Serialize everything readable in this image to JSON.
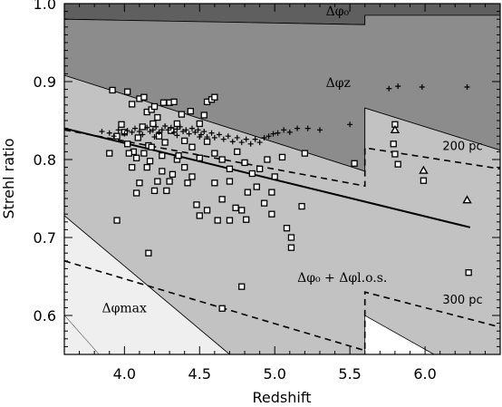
{
  "chart_data": {
    "type": "scatter",
    "xlabel": "Redshift",
    "ylabel": "Strehl ratio",
    "xlim": [
      3.6,
      6.5
    ],
    "ylim": [
      0.55,
      1.0
    ],
    "x_ticks": [
      4.0,
      4.5,
      5.0,
      5.5,
      6.0
    ],
    "x_tick_labels": [
      "4.0",
      "4.5",
      "5.0",
      "5.5",
      "6.0"
    ],
    "y_ticks": [
      0.6,
      0.7,
      0.8,
      0.9,
      1.0
    ],
    "y_tick_labels": [
      "0.6",
      "0.7",
      "0.8",
      "0.9",
      "1.0"
    ],
    "region_labels": [
      {
        "text": "Δφ₀",
        "x": 5.34,
        "y": 0.985
      },
      {
        "text": "Δφz",
        "x": 5.34,
        "y": 0.893
      },
      {
        "text": "Δφ₀ + Δφl.o.s.",
        "x": 5.15,
        "y": 0.643
      },
      {
        "text": "Δφmax",
        "x": 3.85,
        "y": 0.604
      }
    ],
    "contour_labels": [
      {
        "text": "200 pc",
        "x": 6.25,
        "y": 0.812
      },
      {
        "text": "300 pc",
        "x": 6.25,
        "y": 0.615
      }
    ],
    "colors": {
      "band_darkest": "#5f5f5f",
      "band_dark": "#8c8c8c",
      "band_mid": "#c2c2c2",
      "band_light": "#efefef"
    },
    "bands": [
      {
        "name": "delta-phi-0",
        "color": "#5f5f5f",
        "upper": [
          [
            3.6,
            1.0
          ],
          [
            6.5,
            1.0
          ]
        ],
        "lower": [
          [
            3.6,
            0.98
          ],
          [
            5.6,
            0.973
          ],
          [
            5.6,
            0.985
          ],
          [
            6.5,
            0.985
          ]
        ]
      },
      {
        "name": "delta-phi-z",
        "color": "#8c8c8c",
        "upper": [
          [
            3.6,
            0.98
          ],
          [
            5.6,
            0.973
          ],
          [
            5.6,
            0.985
          ],
          [
            6.5,
            0.985
          ]
        ],
        "lower": [
          [
            3.6,
            0.908
          ],
          [
            5.6,
            0.785
          ],
          [
            5.6,
            0.866
          ],
          [
            6.5,
            0.812
          ]
        ]
      },
      {
        "name": "delta-phi-los",
        "color": "#c2c2c2",
        "upper": [
          [
            3.6,
            0.908
          ],
          [
            5.6,
            0.785
          ],
          [
            5.6,
            0.866
          ],
          [
            6.5,
            0.812
          ]
        ],
        "lower": [
          [
            3.6,
            0.728
          ],
          [
            4.7,
            0.55
          ],
          [
            5.6,
            0.55
          ],
          [
            5.6,
            0.6
          ],
          [
            6.06,
            0.55
          ],
          [
            6.5,
            0.55
          ]
        ]
      },
      {
        "name": "delta-phi-max",
        "color": "#efefef",
        "upper": [
          [
            3.6,
            0.728
          ],
          [
            4.7,
            0.55
          ]
        ],
        "lower": [
          [
            3.6,
            0.6
          ],
          [
            3.83,
            0.55
          ]
        ]
      }
    ],
    "solid_line": [
      [
        3.6,
        0.84
      ],
      [
        6.3,
        0.713
      ]
    ],
    "dashed_200pc": [
      [
        3.6,
        0.838
      ],
      [
        5.6,
        0.766
      ],
      [
        5.6,
        0.815
      ],
      [
        6.5,
        0.788
      ]
    ],
    "dashed_300pc": [
      [
        3.6,
        0.67
      ],
      [
        5.6,
        0.555
      ],
      [
        5.6,
        0.63
      ],
      [
        6.5,
        0.585
      ]
    ],
    "series": [
      {
        "marker": "square",
        "points": [
          [
            3.92,
            0.889
          ],
          [
            3.98,
            0.845
          ],
          [
            4.02,
            0.887
          ],
          [
            4.05,
            0.871
          ],
          [
            4.1,
            0.878
          ],
          [
            4.13,
            0.88
          ],
          [
            4.15,
            0.861
          ],
          [
            4.18,
            0.864
          ],
          [
            4.2,
            0.868
          ],
          [
            4.22,
            0.854
          ],
          [
            4.26,
            0.873
          ],
          [
            4.3,
            0.873
          ],
          [
            4.33,
            0.874
          ],
          [
            4.38,
            0.858
          ],
          [
            4.44,
            0.862
          ],
          [
            4.5,
            0.846
          ],
          [
            4.55,
            0.874
          ],
          [
            4.58,
            0.877
          ],
          [
            4.6,
            0.88
          ],
          [
            4.53,
            0.857
          ],
          [
            3.9,
            0.808
          ],
          [
            3.95,
            0.83
          ],
          [
            4.0,
            0.835
          ],
          [
            4.02,
            0.82
          ],
          [
            4.06,
            0.81
          ],
          [
            4.09,
            0.828
          ],
          [
            4.12,
            0.842
          ],
          [
            4.16,
            0.818
          ],
          [
            4.19,
            0.846
          ],
          [
            4.23,
            0.83
          ],
          [
            4.27,
            0.822
          ],
          [
            4.31,
            0.837
          ],
          [
            4.35,
            0.846
          ],
          [
            4.4,
            0.824
          ],
          [
            4.45,
            0.816
          ],
          [
            4.5,
            0.802
          ],
          [
            4.55,
            0.823
          ],
          [
            4.6,
            0.808
          ],
          [
            4.65,
            0.8
          ],
          [
            4.7,
            0.788
          ],
          [
            4.75,
            0.81
          ],
          [
            4.8,
            0.796
          ],
          [
            4.85,
            0.782
          ],
          [
            4.9,
            0.788
          ],
          [
            4.95,
            0.8
          ],
          [
            5.0,
            0.778
          ],
          [
            5.05,
            0.803
          ],
          [
            4.98,
            0.758
          ],
          [
            4.93,
            0.744
          ],
          [
            4.88,
            0.765
          ],
          [
            4.82,
            0.758
          ],
          [
            4.78,
            0.735
          ],
          [
            4.74,
            0.738
          ],
          [
            4.7,
            0.772
          ],
          [
            4.65,
            0.749
          ],
          [
            4.6,
            0.77
          ],
          [
            4.55,
            0.735
          ],
          [
            4.5,
            0.728
          ],
          [
            4.45,
            0.778
          ],
          [
            4.4,
            0.79
          ],
          [
            4.35,
            0.8
          ],
          [
            4.3,
            0.772
          ],
          [
            4.25,
            0.785
          ],
          [
            4.2,
            0.76
          ],
          [
            4.15,
            0.79
          ],
          [
            4.1,
            0.77
          ],
          [
            4.05,
            0.79
          ],
          [
            4.03,
            0.808
          ],
          [
            4.08,
            0.802
          ],
          [
            4.17,
            0.798
          ],
          [
            4.22,
            0.772
          ],
          [
            4.28,
            0.76
          ],
          [
            4.32,
            0.781
          ],
          [
            4.36,
            0.805
          ],
          [
            4.42,
            0.77
          ],
          [
            4.48,
            0.742
          ],
          [
            4.08,
            0.757
          ],
          [
            4.13,
            0.808
          ],
          [
            4.18,
            0.816
          ],
          [
            4.25,
            0.805
          ],
          [
            3.95,
            0.722
          ],
          [
            4.16,
            0.68
          ],
          [
            4.62,
            0.722
          ],
          [
            4.7,
            0.722
          ],
          [
            4.81,
            0.723
          ],
          [
            4.78,
            0.637
          ],
          [
            5.08,
            0.712
          ],
          [
            5.11,
            0.7
          ],
          [
            5.11,
            0.687
          ],
          [
            5.18,
            0.74
          ],
          [
            4.98,
            0.73
          ],
          [
            4.65,
            0.609
          ],
          [
            5.2,
            0.808
          ],
          [
            5.53,
            0.795
          ],
          [
            5.8,
            0.845
          ],
          [
            5.79,
            0.82
          ],
          [
            5.8,
            0.807
          ],
          [
            5.82,
            0.794
          ],
          [
            5.99,
            0.773
          ],
          [
            6.29,
            0.655
          ]
        ]
      },
      {
        "marker": "plus",
        "points": [
          [
            3.85,
            0.836
          ],
          [
            3.9,
            0.834
          ],
          [
            3.93,
            0.83
          ],
          [
            3.96,
            0.838
          ],
          [
            4.0,
            0.833
          ],
          [
            4.02,
            0.837
          ],
          [
            4.05,
            0.835
          ],
          [
            4.07,
            0.84
          ],
          [
            4.1,
            0.836
          ],
          [
            4.12,
            0.832
          ],
          [
            4.15,
            0.841
          ],
          [
            4.17,
            0.836
          ],
          [
            4.19,
            0.838
          ],
          [
            4.21,
            0.842
          ],
          [
            4.23,
            0.835
          ],
          [
            4.25,
            0.838
          ],
          [
            4.27,
            0.843
          ],
          [
            4.29,
            0.838
          ],
          [
            4.31,
            0.841
          ],
          [
            4.33,
            0.835
          ],
          [
            4.35,
            0.839
          ],
          [
            4.37,
            0.842
          ],
          [
            4.39,
            0.836
          ],
          [
            4.41,
            0.838
          ],
          [
            4.43,
            0.833
          ],
          [
            4.45,
            0.84
          ],
          [
            4.47,
            0.835
          ],
          [
            4.49,
            0.838
          ],
          [
            4.51,
            0.832
          ],
          [
            4.53,
            0.836
          ],
          [
            4.55,
            0.829
          ],
          [
            4.58,
            0.834
          ],
          [
            4.6,
            0.828
          ],
          [
            4.63,
            0.832
          ],
          [
            4.66,
            0.826
          ],
          [
            4.69,
            0.83
          ],
          [
            4.72,
            0.823
          ],
          [
            4.75,
            0.828
          ],
          [
            4.78,
            0.822
          ],
          [
            4.81,
            0.826
          ],
          [
            4.84,
            0.82
          ],
          [
            4.87,
            0.826
          ],
          [
            4.9,
            0.822
          ],
          [
            4.93,
            0.828
          ],
          [
            4.96,
            0.83
          ],
          [
            4.99,
            0.833
          ],
          [
            5.02,
            0.834
          ],
          [
            5.06,
            0.838
          ],
          [
            5.1,
            0.835
          ],
          [
            5.15,
            0.84
          ],
          [
            5.22,
            0.84
          ],
          [
            5.3,
            0.838
          ],
          [
            5.5,
            0.845
          ],
          [
            5.76,
            0.891
          ],
          [
            5.82,
            0.894
          ],
          [
            5.98,
            0.893
          ],
          [
            6.28,
            0.893
          ],
          [
            4.2,
            0.829
          ],
          [
            4.35,
            0.831
          ],
          [
            4.5,
            0.829
          ]
        ]
      },
      {
        "marker": "triangle",
        "points": [
          [
            5.8,
            0.838
          ],
          [
            5.99,
            0.786
          ],
          [
            6.28,
            0.748
          ]
        ]
      }
    ]
  }
}
